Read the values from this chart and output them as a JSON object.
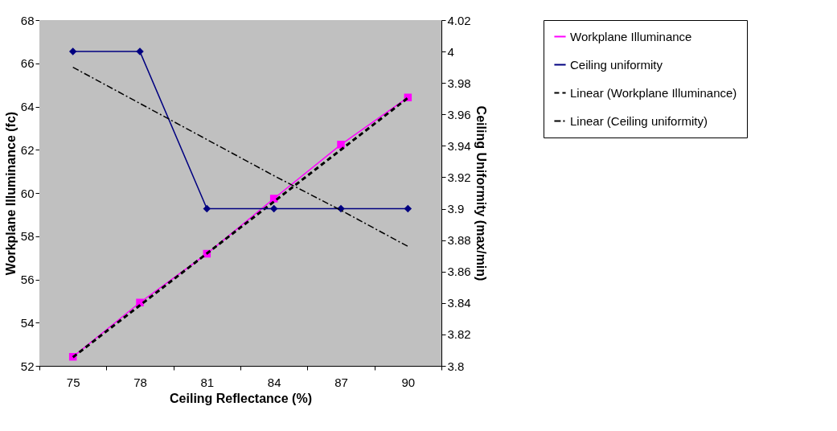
{
  "chart_data": {
    "type": "line",
    "xlabel": "Ceiling Reflectance (%)",
    "ylabel": "Workplane Illuminance (fc)",
    "y2label": "Ceiling Uniformity (max/min)",
    "categories": [
      "75",
      "78",
      "81",
      "84",
      "87",
      "90"
    ],
    "ylim": [
      52,
      68
    ],
    "yticks": [
      52,
      54,
      56,
      58,
      60,
      62,
      64,
      66,
      68
    ],
    "y2lim": [
      3.8,
      4.02
    ],
    "y2ticks": [
      {
        "value": 3.8,
        "label": "3.8"
      },
      3.82,
      3.84,
      3.86,
      3.88,
      {
        "value": 3.9,
        "label": "3.9"
      },
      3.92,
      3.94,
      3.96,
      3.98,
      {
        "value": 4.0,
        "label": "4"
      },
      4.02
    ],
    "legend": "right",
    "series": [
      {
        "name": "Workplane Illuminance",
        "color": "#ff00ff",
        "values": [
          52.42,
          54.93,
          57.19,
          59.74,
          62.24,
          64.42
        ],
        "marker": "square",
        "line_style": "solid"
      },
      {
        "name": "Ceiling uniformity",
        "color": "#000080",
        "values": [
          4.0,
          4.0,
          3.9,
          3.9,
          3.9,
          3.9
        ],
        "marker": "diamond",
        "line_style": "solid",
        "axis": "y2"
      },
      {
        "name": "Linear (Workplane Illuminance)",
        "color": "#000000",
        "values": [
          52.4,
          54.8,
          57.2,
          59.6,
          62.0,
          64.4
        ],
        "marker": "none",
        "line_style": "dashed"
      },
      {
        "name": "Linear (Ceiling uniformity)",
        "color": "#000000",
        "values": [
          3.99,
          3.967,
          3.944,
          3.921,
          3.899,
          3.876
        ],
        "marker": "none",
        "line_style": "dashdot",
        "axis": "y2"
      }
    ]
  }
}
